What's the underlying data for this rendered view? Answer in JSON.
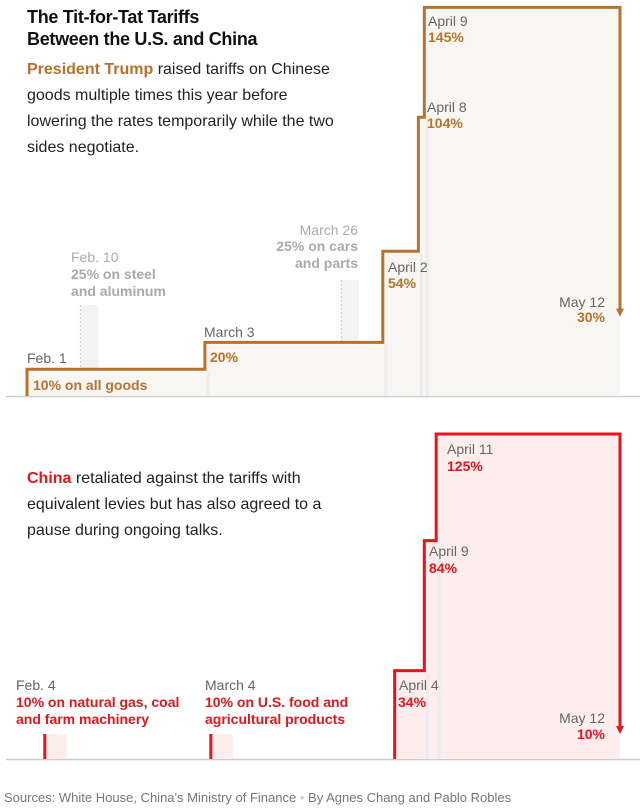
{
  "title_line1": "The Tit-for-Tat Tariffs",
  "title_line2": "Between the U.S. and China",
  "us_intro": {
    "highlight": "President Trump",
    "rest": " raised tariffs on Chinese goods multiple times this year before lowering the rates temporarily while the two sides negotiate."
  },
  "china_intro": {
    "highlight": "China",
    "rest": " retaliated against the tariffs with equivalent levies but has also agreed to a pause during ongoing talks."
  },
  "footer": {
    "sources": "Sources: White House, China's Ministry of Finance",
    "separator": "•",
    "byline": "By Agnes Chang and Pablo Robles"
  },
  "colors": {
    "us": "#b7722c",
    "china": "#e8131b",
    "us_fill": "#f8f6f2",
    "china_fill": "#fdeded",
    "baseline": "#cccccc"
  },
  "chart_data": [
    {
      "type": "line",
      "step": true,
      "series": [
        {
          "name": "President Trump",
          "x": [
            "Feb. 1",
            "March 3",
            "April 2",
            "April 8",
            "April 9",
            "May 12"
          ],
          "values": [
            10,
            20,
            54,
            104,
            145,
            30
          ]
        }
      ],
      "labels": [
        {
          "date": "Feb. 1",
          "text": "10% on all goods"
        },
        {
          "date": "March 3",
          "text": "20%"
        },
        {
          "date": "April 2",
          "text": "54%"
        },
        {
          "date": "April 8",
          "text": "104%"
        },
        {
          "date": "April 9",
          "text": "145%"
        },
        {
          "date": "May 12",
          "text": "30%"
        }
      ],
      "sector_labels": [
        {
          "date": "Feb. 10",
          "line1": "25% on steel",
          "line2": "and aluminum"
        },
        {
          "date": "March 26",
          "line1": "25% on cars",
          "line2": "and parts"
        }
      ]
    },
    {
      "type": "line",
      "step": true,
      "series": [
        {
          "name": "China",
          "x": [
            "April 4",
            "April 9",
            "April 11",
            "May 12"
          ],
          "values": [
            34,
            84,
            125,
            10
          ]
        }
      ],
      "labels": [
        {
          "date": "Feb. 4",
          "line1": "10% on natural gas, coal",
          "line2": "and farm machinery"
        },
        {
          "date": "March 4",
          "line1": "10% on U.S. food and",
          "line2": "agricultural products"
        },
        {
          "date": "April 4",
          "text": "34%"
        },
        {
          "date": "April 9",
          "text": "84%"
        },
        {
          "date": "April 11",
          "text": "125%"
        },
        {
          "date": "May 12",
          "text": "10%"
        }
      ]
    }
  ]
}
